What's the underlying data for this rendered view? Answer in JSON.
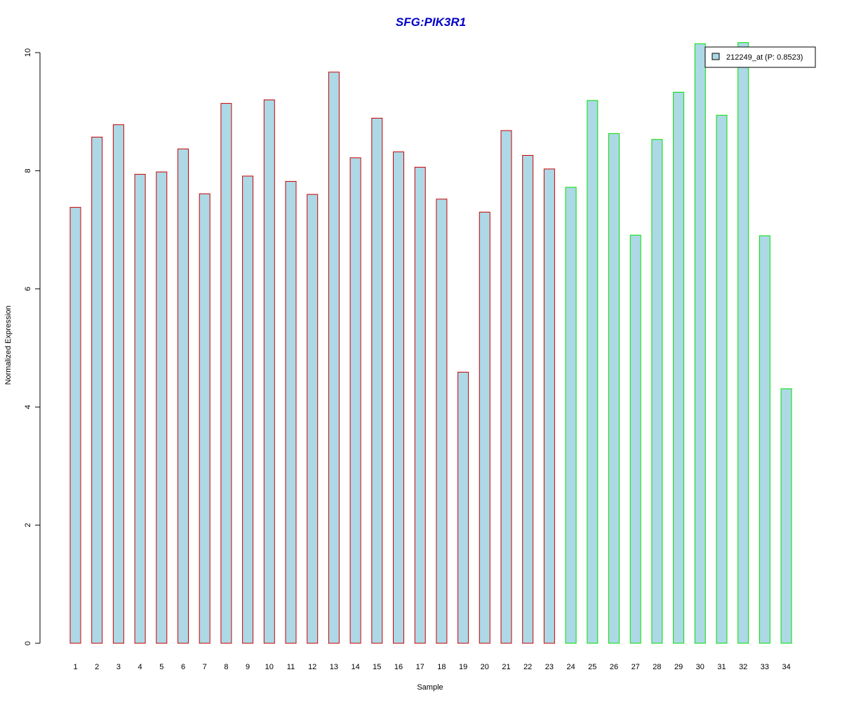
{
  "chart_data": {
    "type": "bar",
    "title": "SFG:PIK3R1",
    "xlabel": "Sample",
    "ylabel": "Normalized Expression",
    "categories": [
      "1",
      "2",
      "3",
      "4",
      "5",
      "6",
      "7",
      "8",
      "9",
      "10",
      "11",
      "12",
      "13",
      "14",
      "15",
      "16",
      "17",
      "18",
      "19",
      "20",
      "21",
      "22",
      "23",
      "24",
      "25",
      "26",
      "27",
      "28",
      "29",
      "30",
      "31",
      "32",
      "33",
      "34"
    ],
    "series": [
      {
        "name": "212249_at (P: 0.8523)",
        "values": [
          7.38,
          8.57,
          8.78,
          7.94,
          7.98,
          8.37,
          7.61,
          9.14,
          7.91,
          9.2,
          7.82,
          7.6,
          9.67,
          8.22,
          8.89,
          8.32,
          8.06,
          7.52,
          4.59,
          7.3,
          8.68,
          8.26,
          8.03,
          7.72,
          9.19,
          8.63,
          6.91,
          8.53,
          9.33,
          10.15,
          8.94,
          10.17,
          6.9,
          4.31
        ]
      }
    ],
    "ylim": [
      0,
      10
    ],
    "yticks": [
      0,
      2,
      4,
      6,
      8,
      10
    ],
    "grid": false,
    "legend": {
      "position": "top-right",
      "label": "212249_at (P: 0.8523)"
    },
    "bar_groups": [
      1,
      1,
      1,
      1,
      1,
      1,
      1,
      1,
      1,
      1,
      1,
      1,
      1,
      1,
      1,
      1,
      1,
      1,
      1,
      1,
      1,
      1,
      1,
      2,
      2,
      2,
      2,
      2,
      2,
      2,
      2,
      2,
      2,
      2
    ],
    "colors": {
      "bar_fill": "#add8e6",
      "group1_border": "#cc0000",
      "group2_border": "#00e000",
      "title": "#0000cc",
      "axis": "#000000"
    }
  }
}
